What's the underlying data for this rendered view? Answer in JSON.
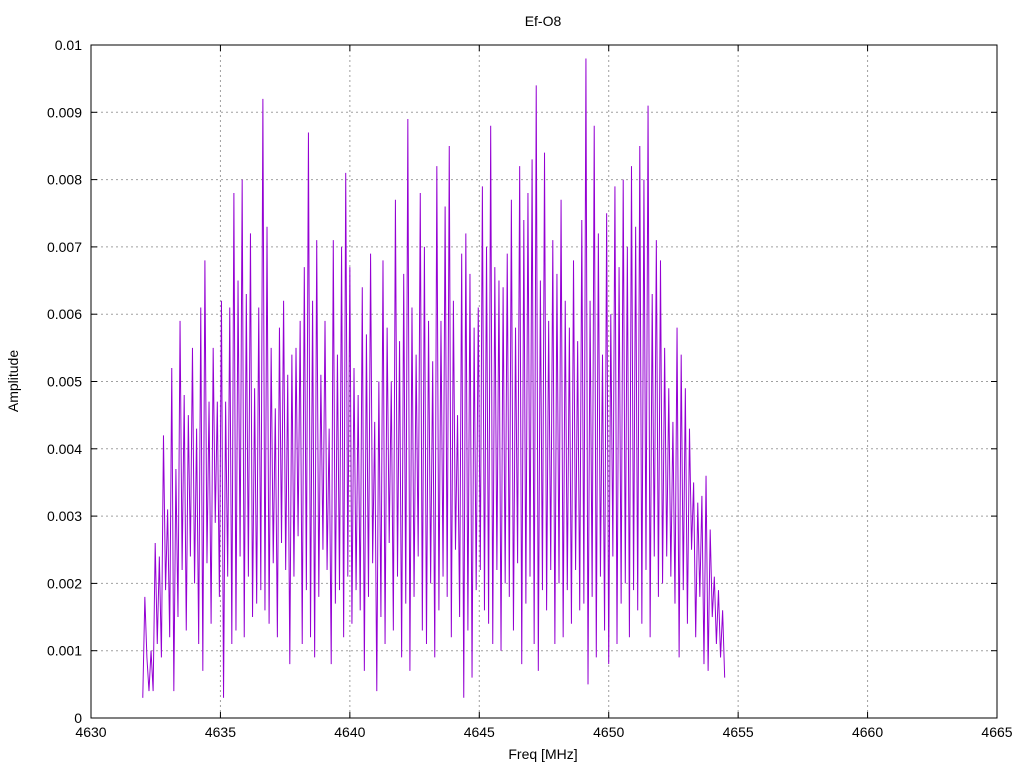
{
  "chart_data": {
    "type": "line",
    "title": "Ef-O8",
    "xlabel": "Freq [MHz]",
    "ylabel": "Amplitude",
    "xlim": [
      4630,
      4665
    ],
    "ylim": [
      0,
      0.01
    ],
    "x_ticks": [
      "4630",
      "4635",
      "4640",
      "4645",
      "4650",
      "4655",
      "4660",
      "4665"
    ],
    "y_ticks": [
      "0",
      "0.001",
      "0.002",
      "0.003",
      "0.004",
      "0.005",
      "0.006",
      "0.007",
      "0.008",
      "0.009",
      "0.01"
    ],
    "grid": true,
    "line_color": "#9400d3",
    "series": [
      {
        "x_start": 4632.0,
        "x_step": 0.08,
        "values": [
          0.0003,
          0.0018,
          0.0009,
          0.0004,
          0.001,
          0.0004,
          0.0026,
          0.0011,
          0.0024,
          0.0009,
          0.0042,
          0.0019,
          0.0031,
          0.0012,
          0.0052,
          0.0004,
          0.0037,
          0.0015,
          0.0059,
          0.0022,
          0.0048,
          0.0013,
          0.0045,
          0.0024,
          0.0055,
          0.002,
          0.0043,
          0.0011,
          0.0061,
          0.0007,
          0.0068,
          0.0023,
          0.0047,
          0.0014,
          0.0055,
          0.0029,
          0.0047,
          0.0018,
          0.0062,
          0.0003,
          0.0047,
          0.0021,
          0.0061,
          0.0011,
          0.0078,
          0.0013,
          0.0065,
          0.0024,
          0.008,
          0.0012,
          0.0063,
          0.0021,
          0.0072,
          0.0015,
          0.0049,
          0.0017,
          0.0061,
          0.0019,
          0.0092,
          0.0016,
          0.0073,
          0.0014,
          0.0055,
          0.0023,
          0.0046,
          0.0012,
          0.0058,
          0.0026,
          0.0062,
          0.0022,
          0.0051,
          0.0008,
          0.0054,
          0.0021,
          0.0055,
          0.0027,
          0.0059,
          0.0011,
          0.0067,
          0.0019,
          0.0087,
          0.0012,
          0.0062,
          0.0009,
          0.0071,
          0.0018,
          0.0051,
          0.0025,
          0.0059,
          0.0022,
          0.0043,
          0.0008,
          0.0071,
          0.0017,
          0.0054,
          0.0019,
          0.007,
          0.0012,
          0.0081,
          0.0021,
          0.0067,
          0.0014,
          0.0052,
          0.0019,
          0.0048,
          0.0016,
          0.0064,
          0.0007,
          0.0057,
          0.0018,
          0.0069,
          0.0023,
          0.0044,
          0.0004,
          0.005,
          0.0015,
          0.0068,
          0.0011,
          0.0058,
          0.0026,
          0.005,
          0.0013,
          0.0077,
          0.0021,
          0.0056,
          0.0009,
          0.0066,
          0.0017,
          0.0089,
          0.0007,
          0.0061,
          0.0018,
          0.0054,
          0.0024,
          0.0078,
          0.0013,
          0.007,
          0.0011,
          0.0059,
          0.002,
          0.0053,
          0.0009,
          0.0082,
          0.0016,
          0.0059,
          0.0021,
          0.0076,
          0.0018,
          0.0085,
          0.0012,
          0.0062,
          0.0025,
          0.0045,
          0.0015,
          0.0069,
          0.0003,
          0.0072,
          0.0013,
          0.0066,
          0.0006,
          0.0058,
          0.0019,
          0.0061,
          0.0022,
          0.0079,
          0.0016,
          0.007,
          0.0014,
          0.0088,
          0.0011,
          0.0067,
          0.0022,
          0.0065,
          0.001,
          0.0064,
          0.002,
          0.0069,
          0.0018,
          0.0077,
          0.0013,
          0.0058,
          0.0023,
          0.0082,
          0.0008,
          0.0074,
          0.0017,
          0.0078,
          0.0021,
          0.0083,
          0.0011,
          0.0094,
          0.0007,
          0.0065,
          0.0019,
          0.0084,
          0.0016,
          0.0059,
          0.0022,
          0.0071,
          0.0011,
          0.0066,
          0.002,
          0.0077,
          0.0012,
          0.0062,
          0.0019,
          0.0058,
          0.0014,
          0.0068,
          0.0022,
          0.0056,
          0.0016,
          0.0074,
          0.0017,
          0.0098,
          0.0005,
          0.0062,
          0.0018,
          0.0088,
          0.0009,
          0.0072,
          0.0021,
          0.0054,
          0.0013,
          0.0075,
          0.0008,
          0.006,
          0.0024,
          0.0079,
          0.0011,
          0.0067,
          0.0017,
          0.008,
          0.002,
          0.007,
          0.0012,
          0.0082,
          0.0019,
          0.0073,
          0.0016,
          0.0085,
          0.0014,
          0.008,
          0.0022,
          0.0091,
          0.0012,
          0.0063,
          0.0024,
          0.0071,
          0.0018,
          0.0068,
          0.002,
          0.0055,
          0.0024,
          0.0049,
          0.0021,
          0.0044,
          0.0017,
          0.0058,
          0.0009,
          0.0054,
          0.0019,
          0.0049,
          0.0014,
          0.0043,
          0.0025,
          0.0035,
          0.0012,
          0.0032,
          0.0018,
          0.0033,
          0.0008,
          0.0036,
          0.0007,
          0.0028,
          0.0015,
          0.0021,
          0.0011,
          0.0019,
          0.0009,
          0.0016,
          0.0006
        ]
      }
    ]
  }
}
